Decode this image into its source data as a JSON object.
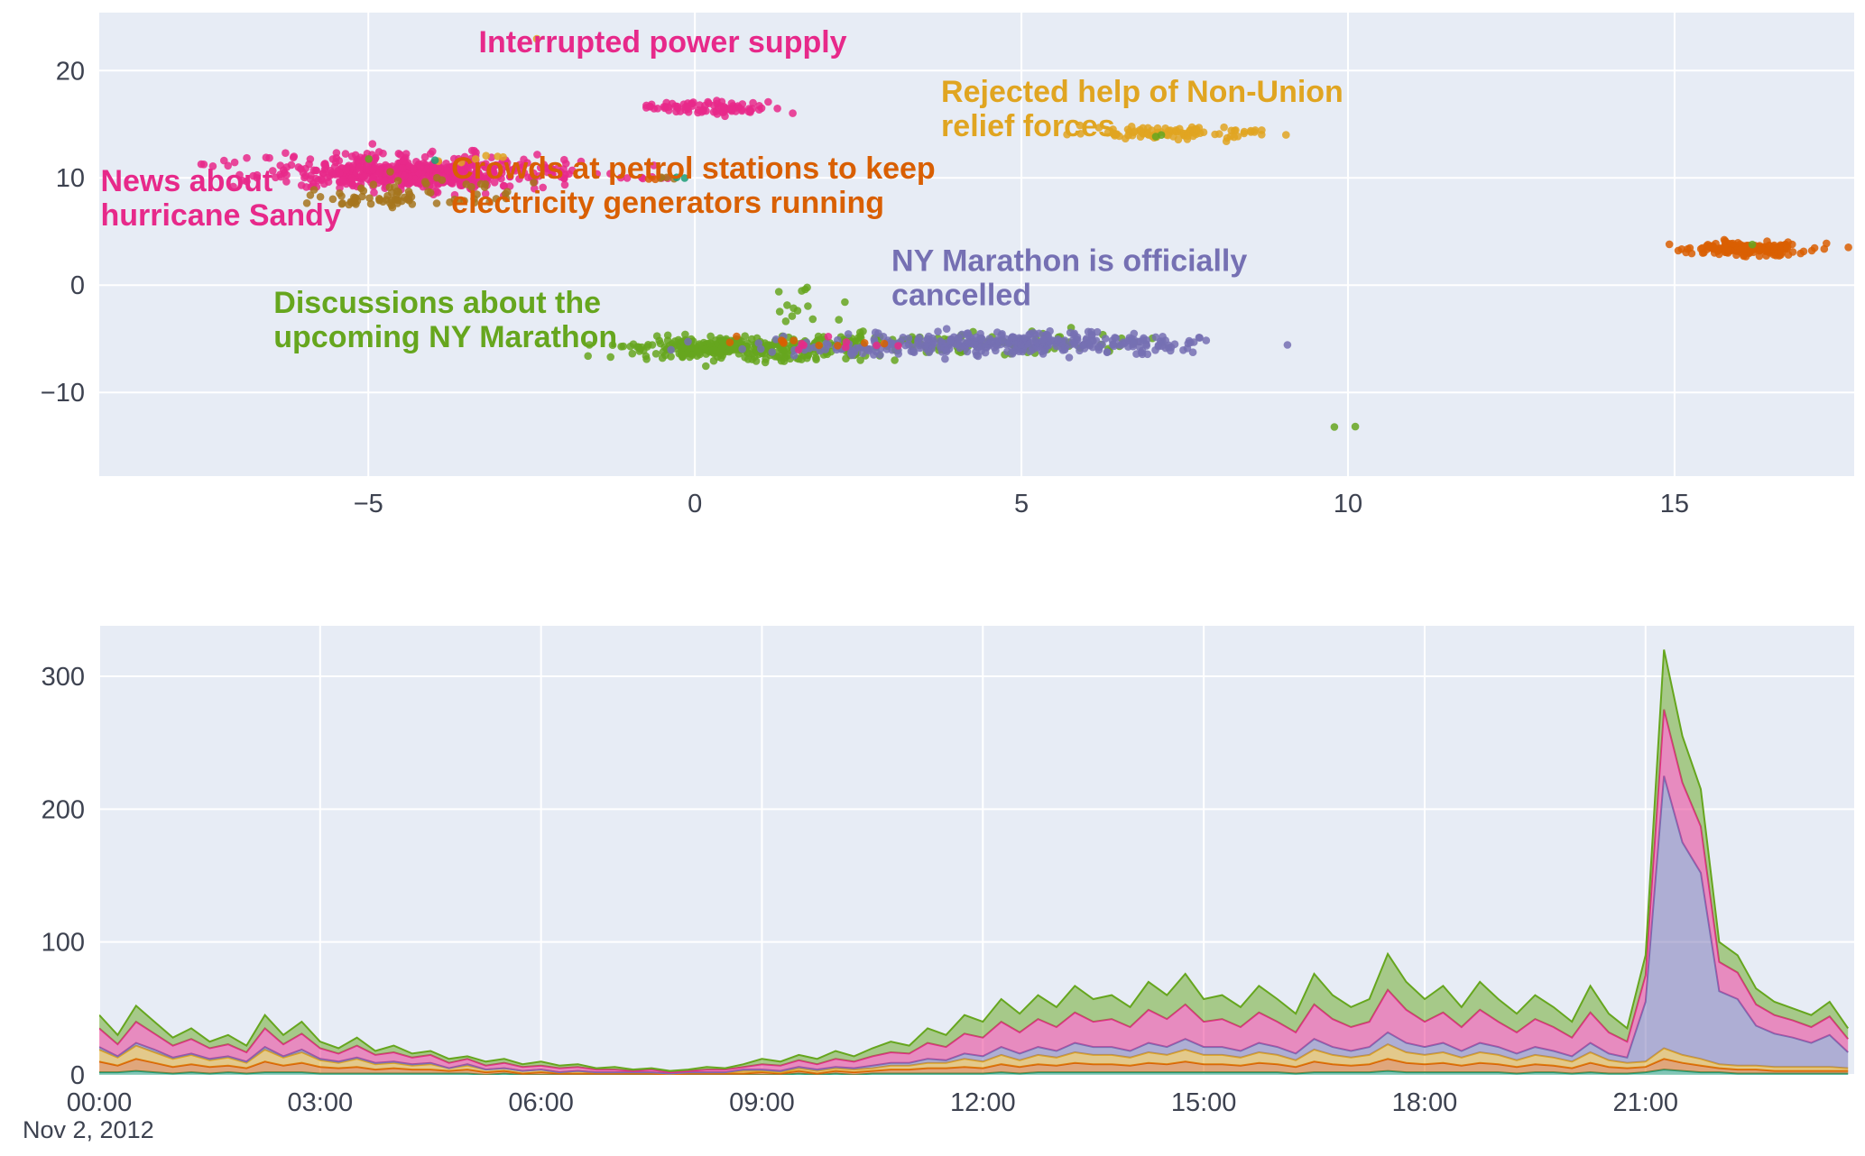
{
  "page": {
    "background": "#ffffff",
    "plot_background": "#e7ecf5",
    "grid_color": "#ffffff",
    "tick_color": "#3d4250"
  },
  "palette": {
    "pink": "#e7298a",
    "green": "#66a61e",
    "purple": "#7570b3",
    "gold": "#e0a521",
    "orange": "#d95f02",
    "teal": "#1b9e77",
    "brown": "#a6761d"
  },
  "chart_data": [
    {
      "type": "scatter",
      "title": "",
      "xlabel": "",
      "ylabel": "",
      "x_range": [
        -9.12,
        17.75
      ],
      "y_range": [
        -17.8,
        25.4
      ],
      "x_tick_values": [
        -5,
        0,
        5,
        10,
        15
      ],
      "x_tick_labels": [
        "−5",
        "0",
        "5",
        "10",
        "15"
      ],
      "y_tick_values": [
        -10,
        0,
        10,
        20
      ],
      "y_tick_labels": [
        "−10",
        "0",
        "10",
        "20"
      ],
      "grid": true,
      "legend": "none",
      "marker_radius_px": 4.3,
      "clusters": [
        {
          "name": "news-sandy-main",
          "color": "pink",
          "cx": -4.3,
          "cy": 10.6,
          "sx": 1.15,
          "sy": 0.85,
          "n": 420
        },
        {
          "name": "news-sandy-dense",
          "color": "pink",
          "cx": -4.5,
          "cy": 10.3,
          "sx": 0.6,
          "sy": 0.5,
          "n": 180
        },
        {
          "name": "sandy-brown-fringe",
          "color": "brown",
          "cx": -4.7,
          "cy": 7.9,
          "sx": 0.75,
          "sy": 0.3,
          "n": 55
        },
        {
          "name": "sandy-brown-mix",
          "color": "brown",
          "cx": -4.0,
          "cy": 9.3,
          "sx": 0.9,
          "sy": 0.5,
          "n": 25
        },
        {
          "name": "sandy-gold-specks",
          "color": "gold",
          "cx": -3.4,
          "cy": 11.9,
          "sx": 0.5,
          "sy": 0.7,
          "n": 6
        },
        {
          "name": "sandy-outliers-left",
          "color": "pink",
          "cx": -7.55,
          "cy": 11.3,
          "sx": 0.12,
          "sy": 0.1,
          "n": 3
        },
        {
          "name": "sandy-outliers-right",
          "color": "pink",
          "cx": -2.3,
          "cy": 10.5,
          "sx": 0.25,
          "sy": 0.2,
          "n": 8
        },
        {
          "name": "green-speck-sandy",
          "color": "green",
          "cx": -5.0,
          "cy": 11.8,
          "sx": 0.05,
          "sy": 0.05,
          "n": 1
        },
        {
          "name": "teal-speck-sandy",
          "color": "teal",
          "cx": -4.0,
          "cy": 11.6,
          "sx": 0.05,
          "sy": 0.05,
          "n": 1
        },
        {
          "name": "power-supply",
          "color": "pink",
          "cx": 0.3,
          "cy": 16.5,
          "sx": 0.5,
          "sy": 0.38,
          "n": 85
        },
        {
          "name": "mixed-row-pink",
          "color": "pink",
          "cx": -0.8,
          "cy": 10.0,
          "sx": 0.22,
          "sy": 0.08,
          "n": 7
        },
        {
          "name": "mixed-row-brown",
          "color": "brown",
          "cx": -0.4,
          "cy": 10.0,
          "sx": 0.12,
          "sy": 0.06,
          "n": 4
        },
        {
          "name": "mixed-row-teal",
          "color": "teal",
          "cx": -0.18,
          "cy": 10.0,
          "sx": 0.05,
          "sy": 0.05,
          "n": 2
        },
        {
          "name": "mixed-row-orange",
          "color": "orange",
          "cx": -0.5,
          "cy": 9.95,
          "sx": 0.1,
          "sy": 0.05,
          "n": 2
        },
        {
          "name": "rejected-gold",
          "color": "gold",
          "cx": 7.3,
          "cy": 14.2,
          "sx": 0.7,
          "sy": 0.3,
          "n": 95
        },
        {
          "name": "rejected-green-specks",
          "color": "green",
          "cx": 7.1,
          "cy": 14.0,
          "sx": 0.2,
          "sy": 0.1,
          "n": 2
        },
        {
          "name": "petrol-orange",
          "color": "orange",
          "cx": 16.1,
          "cy": 3.4,
          "sx": 0.55,
          "sy": 0.28,
          "n": 160
        },
        {
          "name": "petrol-green-speck",
          "color": "green",
          "cx": 16.2,
          "cy": 3.8,
          "sx": 0.1,
          "sy": 0.05,
          "n": 1
        },
        {
          "name": "marathon-green",
          "color": "green",
          "cx": 0.8,
          "cy": -5.9,
          "sx": 1.0,
          "sy": 0.5,
          "n": 330
        },
        {
          "name": "marathon-green-east",
          "color": "green",
          "cx": 4.0,
          "cy": -5.4,
          "sx": 1.5,
          "sy": 0.5,
          "n": 130
        },
        {
          "name": "marathon-green-tail",
          "color": "green",
          "cx": 1.7,
          "cy": -2.7,
          "sx": 0.3,
          "sy": 0.9,
          "n": 10
        },
        {
          "name": "marathon-green-north",
          "color": "green",
          "cx": 1.5,
          "cy": -0.6,
          "sx": 0.25,
          "sy": 0.25,
          "n": 4
        },
        {
          "name": "marathon-purple",
          "color": "purple",
          "cx": 4.9,
          "cy": -5.4,
          "sx": 1.2,
          "sy": 0.55,
          "n": 300
        },
        {
          "name": "marathon-purple-west",
          "color": "purple",
          "cx": 2.4,
          "cy": -5.8,
          "sx": 0.8,
          "sy": 0.4,
          "n": 40
        },
        {
          "name": "marathon-purple-east",
          "color": "purple",
          "cx": 7.1,
          "cy": -5.3,
          "sx": 0.35,
          "sy": 0.4,
          "n": 25
        },
        {
          "name": "marathon-orange-specks",
          "color": "orange",
          "cx": 1.6,
          "cy": -5.3,
          "sx": 0.8,
          "sy": 0.4,
          "n": 10
        },
        {
          "name": "marathon-pink-specks",
          "color": "pink",
          "cx": 2.3,
          "cy": -5.6,
          "sx": 0.7,
          "sy": 0.4,
          "n": 8
        },
        {
          "name": "south-green-pair",
          "color": "green",
          "cx": 10.0,
          "cy": -13.2,
          "sx": 0.12,
          "sy": 0.05,
          "n": 2
        },
        {
          "name": "gold-outlier-top",
          "color": "gold",
          "cx": -2.45,
          "cy": 22.9,
          "sx": 0.05,
          "sy": 0.05,
          "n": 1
        }
      ],
      "annotations": [
        {
          "name": "interrupted-power-supply",
          "lines": [
            "Interrupted power supply"
          ],
          "color": "pink",
          "x": -3.31,
          "y": 21.7
        },
        {
          "name": "rejected-help",
          "lines": [
            "Rejected help of Non-Union",
            "relief forces"
          ],
          "color": "gold",
          "x": 3.77,
          "y": 17.1
        },
        {
          "name": "news-hurricane-sandy",
          "lines": [
            "News about",
            "hurricane Sandy"
          ],
          "color": "pink",
          "x": -9.1,
          "y": 8.74
        },
        {
          "name": "crowds-petrol",
          "lines": [
            "Crowds at petrol stations to keep",
            "electricity generators running"
          ],
          "color": "orange",
          "x": -3.73,
          "y": 9.92
        },
        {
          "name": "discussions-marathon",
          "lines": [
            "Discussions about the",
            "upcoming NY Marathon"
          ],
          "color": "green",
          "x": -6.45,
          "y": -2.6
        },
        {
          "name": "marathon-cancelled",
          "lines": [
            "NY Marathon is officially",
            "cancelled"
          ],
          "color": "purple",
          "x": 3.01,
          "y": 1.34
        }
      ]
    },
    {
      "type": "area",
      "stacked": true,
      "title": "",
      "xlabel": "",
      "ylabel": "",
      "date_label": "Nov 2, 2012",
      "x_start": "00:00",
      "x_step_minutes": 15,
      "x_range_minutes": [
        0,
        1430
      ],
      "x_tick_minutes": [
        0,
        180,
        360,
        540,
        720,
        900,
        1080,
        1260
      ],
      "x_tick_labels": [
        "00:00",
        "03:00",
        "06:00",
        "09:00",
        "12:00",
        "15:00",
        "18:00",
        "21:00"
      ],
      "y_ticks": [
        0,
        100,
        200,
        300
      ],
      "y_range": [
        0,
        338
      ],
      "grid": true,
      "legend": "none",
      "stack_order": "bottom-to-top",
      "series": [
        {
          "name": "series-teal",
          "color": "teal",
          "values": [
            2,
            2,
            3,
            2,
            1,
            2,
            1,
            2,
            1,
            2,
            2,
            2,
            1,
            1,
            1,
            1,
            1,
            1,
            1,
            1,
            1,
            0,
            1,
            0,
            0,
            0,
            0,
            0,
            0,
            0,
            0,
            0,
            0,
            0,
            0,
            0,
            0,
            0,
            1,
            0,
            1,
            0,
            1,
            1,
            1,
            1,
            1,
            1,
            1,
            2,
            1,
            2,
            2,
            2,
            2,
            2,
            2,
            2,
            2,
            2,
            2,
            2,
            2,
            2,
            2,
            1,
            2,
            2,
            2,
            2,
            3,
            2,
            2,
            2,
            2,
            2,
            2,
            1,
            2,
            2,
            1,
            2,
            1,
            1,
            2,
            4,
            3,
            2,
            2,
            1,
            1,
            1,
            1,
            1,
            1,
            1
          ]
        },
        {
          "name": "series-orange",
          "color": "orange",
          "values": [
            8,
            5,
            9,
            7,
            5,
            6,
            5,
            5,
            4,
            8,
            5,
            7,
            5,
            4,
            5,
            3,
            4,
            3,
            3,
            2,
            3,
            2,
            2,
            1,
            2,
            1,
            1,
            1,
            1,
            1,
            1,
            0,
            1,
            1,
            1,
            1,
            2,
            1,
            2,
            1,
            2,
            2,
            2,
            3,
            3,
            4,
            4,
            5,
            4,
            6,
            5,
            6,
            5,
            7,
            6,
            6,
            5,
            7,
            6,
            8,
            6,
            6,
            5,
            7,
            6,
            5,
            8,
            6,
            5,
            6,
            9,
            7,
            6,
            7,
            5,
            7,
            6,
            5,
            6,
            5,
            4,
            7,
            5,
            4,
            4,
            8,
            6,
            5,
            3,
            3,
            3,
            2,
            2,
            2,
            2,
            2
          ]
        },
        {
          "name": "series-gold",
          "color": "gold",
          "values": [
            9,
            6,
            10,
            8,
            6,
            7,
            5,
            6,
            4,
            9,
            6,
            8,
            5,
            4,
            6,
            4,
            4,
            3,
            4,
            2,
            3,
            2,
            2,
            2,
            2,
            1,
            2,
            1,
            1,
            1,
            1,
            1,
            1,
            1,
            1,
            2,
            1,
            1,
            2,
            2,
            2,
            2,
            2,
            3,
            3,
            4,
            4,
            6,
            5,
            7,
            5,
            7,
            6,
            8,
            7,
            7,
            6,
            8,
            7,
            9,
            7,
            7,
            6,
            8,
            7,
            5,
            9,
            7,
            6,
            7,
            11,
            8,
            7,
            8,
            6,
            8,
            7,
            5,
            7,
            6,
            5,
            8,
            5,
            4,
            4,
            8,
            6,
            5,
            3,
            3,
            3,
            3,
            3,
            3,
            3,
            2
          ]
        },
        {
          "name": "series-purple",
          "color": "purple",
          "values": [
            2,
            1,
            2,
            2,
            1,
            1,
            1,
            1,
            1,
            2,
            1,
            2,
            1,
            1,
            1,
            1,
            1,
            1,
            1,
            0,
            1,
            0,
            0,
            0,
            0,
            0,
            0,
            0,
            0,
            0,
            0,
            0,
            0,
            0,
            0,
            1,
            1,
            1,
            1,
            1,
            1,
            1,
            2,
            2,
            2,
            3,
            2,
            4,
            4,
            6,
            5,
            6,
            5,
            7,
            6,
            6,
            5,
            7,
            6,
            8,
            6,
            6,
            5,
            7,
            6,
            5,
            8,
            6,
            5,
            6,
            9,
            7,
            6,
            7,
            5,
            7,
            6,
            5,
            6,
            5,
            4,
            7,
            5,
            4,
            45,
            205,
            160,
            140,
            55,
            50,
            30,
            25,
            22,
            18,
            24,
            12
          ]
        },
        {
          "name": "series-pink",
          "color": "pink",
          "values": [
            14,
            9,
            16,
            12,
            9,
            11,
            8,
            9,
            7,
            14,
            9,
            12,
            8,
            6,
            9,
            6,
            7,
            5,
            6,
            4,
            4,
            3,
            4,
            3,
            3,
            3,
            3,
            2,
            2,
            1,
            2,
            1,
            1,
            2,
            2,
            2,
            4,
            4,
            5,
            4,
            6,
            5,
            7,
            8,
            7,
            12,
            10,
            15,
            14,
            19,
            16,
            21,
            18,
            23,
            19,
            21,
            18,
            25,
            21,
            26,
            19,
            21,
            18,
            23,
            19,
            16,
            26,
            21,
            18,
            19,
            32,
            25,
            19,
            23,
            18,
            25,
            19,
            16,
            21,
            18,
            14,
            23,
            16,
            12,
            20,
            50,
            45,
            35,
            22,
            20,
            16,
            14,
            13,
            12,
            14,
            10
          ]
        },
        {
          "name": "series-green",
          "color": "green",
          "values": [
            10,
            7,
            12,
            9,
            6,
            8,
            5,
            7,
            5,
            10,
            7,
            9,
            5,
            4,
            6,
            3,
            5,
            3,
            3,
            3,
            2,
            3,
            3,
            2,
            3,
            2,
            2,
            1,
            2,
            1,
            1,
            1,
            1,
            2,
            1,
            2,
            4,
            3,
            4,
            4,
            6,
            4,
            6,
            8,
            6,
            11,
            9,
            14,
            12,
            17,
            14,
            18,
            15,
            20,
            17,
            18,
            15,
            21,
            18,
            23,
            17,
            18,
            15,
            20,
            17,
            14,
            23,
            18,
            15,
            17,
            27,
            21,
            17,
            20,
            15,
            21,
            17,
            14,
            18,
            15,
            12,
            20,
            14,
            10,
            15,
            45,
            35,
            28,
            15,
            13,
            12,
            10,
            9,
            9,
            11,
            8
          ]
        }
      ]
    }
  ]
}
